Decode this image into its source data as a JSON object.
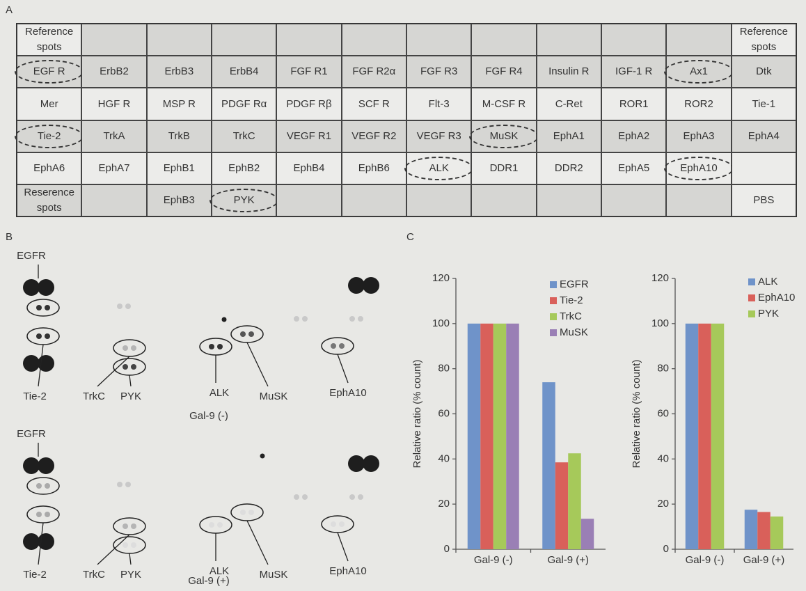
{
  "panels": [
    "A",
    "B",
    "C"
  ],
  "table": {
    "rows": [
      [
        "Reference spots",
        null,
        null,
        null,
        null,
        null,
        null,
        null,
        null,
        null,
        null,
        "Reference spots"
      ],
      [
        "EGF R",
        "ErbB2",
        "ErbB3",
        "ErbB4",
        "FGF R1",
        "FGF R2α",
        "FGF R3",
        "FGF R4",
        "Insulin R",
        "IGF-1 R",
        "Ax1",
        "Dtk"
      ],
      [
        "Mer",
        "HGF R",
        "MSP R",
        "PDGF Rα",
        "PDGF Rβ",
        "SCF R",
        "Flt-3",
        "M-CSF R",
        "C-Ret",
        "ROR1",
        "ROR2",
        "Tie-1"
      ],
      [
        "Tie-2",
        "TrkA",
        "TrkB",
        "TrkC",
        "VEGF R1",
        "VEGF R2",
        "VEGF R3",
        "MuSK",
        "EphA1",
        "EphA2",
        "EphA3",
        "EphA4"
      ],
      [
        "EphA6",
        "EphA7",
        "EphB1",
        "EphB2",
        "EphB4",
        "EphB6",
        "ALK",
        "DDR1",
        "DDR2",
        "EphA5",
        "EphA10",
        null
      ],
      [
        "Reserence spots",
        null,
        "EphB3",
        "PYK",
        null,
        null,
        null,
        null,
        null,
        null,
        null,
        "PBS"
      ]
    ]
  },
  "blots": [
    {
      "condition": "Gal-9 (-)",
      "labels": [
        "EGFR",
        "Tie-2",
        "TrkC",
        "PYK",
        "ALK",
        "MuSK",
        "EphA10"
      ]
    },
    {
      "condition": "Gal-9 (+)",
      "labels": [
        "EGFR",
        "Tie-2",
        "TrkC",
        "PYK",
        "ALK",
        "MuSK",
        "EphA10"
      ]
    }
  ],
  "chart_data": [
    {
      "type": "bar",
      "ylabel": "Relative ratio (% count)",
      "categories": [
        "Gal-9 (-)",
        "Gal-9 (+)"
      ],
      "series": [
        {
          "name": "EGFR",
          "color": "#6f93c9",
          "values": [
            100,
            74
          ]
        },
        {
          "name": "Tie-2",
          "color": "#d9605a",
          "values": [
            100,
            38.5
          ]
        },
        {
          "name": "TrkC",
          "color": "#a6c95a",
          "values": [
            100,
            42.5
          ]
        },
        {
          "name": "MuSK",
          "color": "#9a7fb5",
          "values": [
            100,
            13.5
          ]
        }
      ],
      "ylim": [
        0,
        120
      ],
      "yticks": [
        0,
        20,
        40,
        60,
        80,
        100,
        120
      ]
    },
    {
      "type": "bar",
      "ylabel": "Relative ratio (% count)",
      "categories": [
        "Gal-9 (-)",
        "Gal-9 (+)"
      ],
      "series": [
        {
          "name": "ALK",
          "color": "#6f93c9",
          "values": [
            100,
            17.5
          ]
        },
        {
          "name": "EphA10",
          "color": "#d9605a",
          "values": [
            100,
            16.5
          ]
        },
        {
          "name": "PYK",
          "color": "#a6c95a",
          "values": [
            100,
            14.5
          ]
        }
      ],
      "ylim": [
        0,
        120
      ],
      "yticks": [
        0,
        20,
        40,
        60,
        80,
        100,
        120
      ]
    }
  ]
}
